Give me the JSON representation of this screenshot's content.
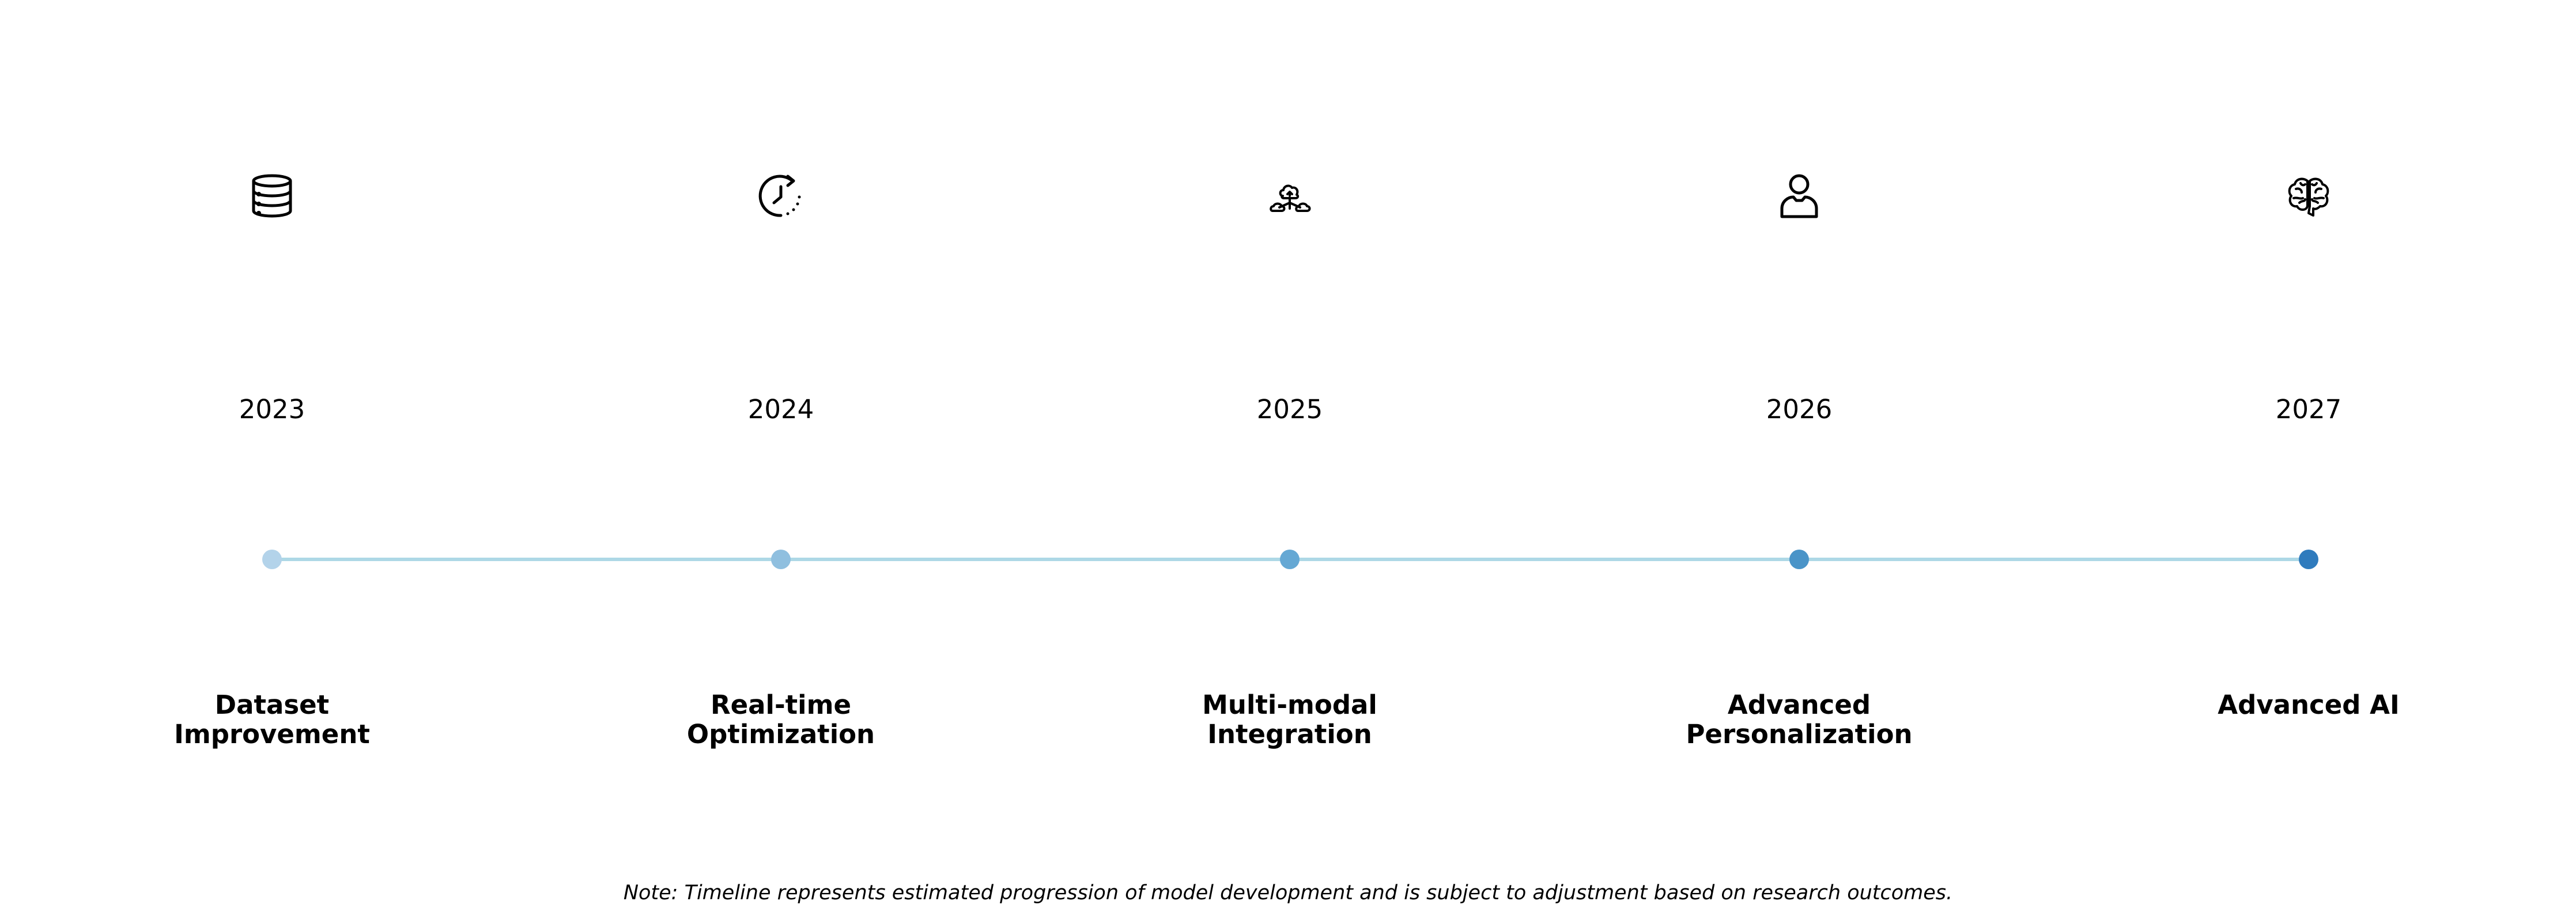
{
  "milestones": [
    {
      "year": "2023",
      "label": "Dataset\nImprovement",
      "icon": "database-icon",
      "dot_color": "#b3d3ea"
    },
    {
      "year": "2024",
      "label": "Real-time\nOptimization",
      "icon": "clock-refresh-icon",
      "dot_color": "#8fbfdf"
    },
    {
      "year": "2025",
      "label": "Multi-modal\nIntegration",
      "icon": "cloud-network-icon",
      "dot_color": "#65a8d4"
    },
    {
      "year": "2026",
      "label": "Advanced\nPersonalization",
      "icon": "user-icon",
      "dot_color": "#4a94c8"
    },
    {
      "year": "2027",
      "label": "Advanced AI",
      "icon": "brain-icon",
      "dot_color": "#2f7bbd"
    }
  ],
  "line_color": "#add8e6",
  "note": "Note: Timeline represents estimated progression of model development and is subject to adjustment based on research outcomes."
}
